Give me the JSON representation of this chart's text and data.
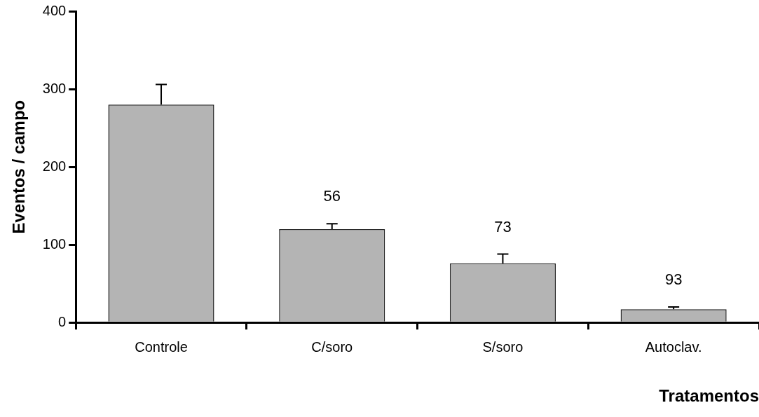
{
  "chart_data": {
    "type": "bar",
    "xlabel": "Tratamentos",
    "ylabel": "Eventos / campo",
    "categories": [
      "Controle",
      "C/soro",
      "S/soro",
      "Autoclav."
    ],
    "values": [
      280,
      120,
      76,
      17
    ],
    "errors": [
      [
        280,
        306
      ],
      [
        120,
        127
      ],
      [
        76,
        88
      ],
      [
        17,
        20
      ]
    ],
    "color": "#b4b4b4",
    "ylim": [
      0,
      400
    ],
    "yticks": [
      0,
      100,
      200,
      300,
      400
    ],
    "grid": false,
    "legend": false,
    "annotations": [
      "56",
      "73",
      "93"
    ]
  }
}
